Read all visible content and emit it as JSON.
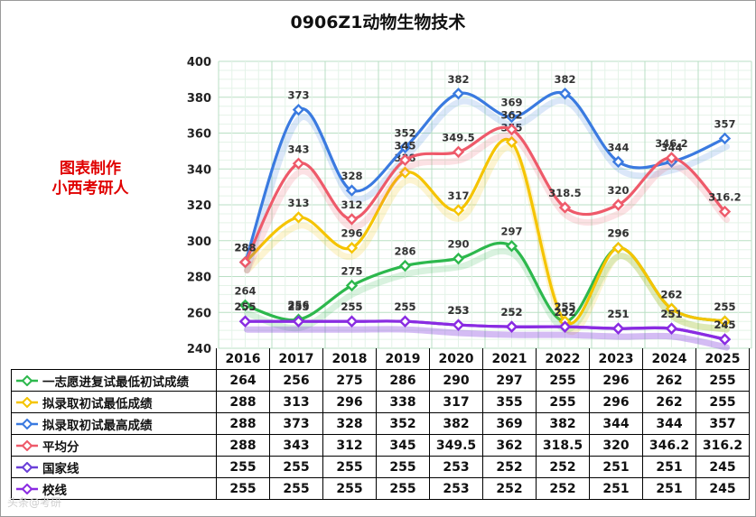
{
  "chart_data": {
    "type": "line",
    "title": "0906Z1动物生物技术",
    "x": [
      "2016",
      "2017",
      "2018",
      "2019",
      "2020",
      "2021",
      "2022",
      "2023",
      "2024",
      "2025"
    ],
    "ylim": [
      240,
      400
    ],
    "yticks": [
      240,
      260,
      280,
      300,
      320,
      340,
      360,
      380,
      400
    ],
    "grid": true,
    "legend": "table-left",
    "series": [
      {
        "name": "一志愿进复试最低初试成绩",
        "color": "#2db84d",
        "values": [
          264,
          256,
          275,
          286,
          290,
          297,
          255,
          296,
          262,
          255
        ],
        "labels": [
          "264",
          "256",
          "275",
          "286",
          "290",
          "297",
          "255",
          "296",
          "262",
          "255"
        ]
      },
      {
        "name": "拟录取初试最低成绩",
        "color": "#f5c400",
        "values": [
          288,
          313,
          296,
          338,
          317,
          355,
          255,
          296,
          262,
          255
        ],
        "labels": [
          "288",
          "313",
          "296",
          "338",
          "317",
          "355",
          "255",
          "296",
          "262",
          "255"
        ]
      },
      {
        "name": "拟录取初试最高成绩",
        "color": "#3a7ae0",
        "values": [
          288,
          373,
          328,
          352,
          382,
          369,
          382,
          344,
          344,
          357
        ],
        "labels": [
          "288",
          "373",
          "328",
          "352",
          "382",
          "369",
          "382",
          "344",
          "344",
          "357"
        ]
      },
      {
        "name": "平均分",
        "color": "#ee5a6a",
        "values": [
          288,
          343,
          312,
          345,
          349.5,
          362,
          318.5,
          320,
          346.2,
          316.2
        ],
        "labels": [
          "288",
          "343",
          "312",
          "345",
          "349.5",
          "362",
          "318.5",
          "320",
          "346.2",
          "316.2"
        ]
      },
      {
        "name": "国家线",
        "color": "#6a3fd8",
        "values": [
          255,
          255,
          255,
          255,
          253,
          252,
          252,
          251,
          251,
          245
        ],
        "labels": [
          "255",
          "255",
          "255",
          "255",
          "253",
          "252",
          "252",
          "251",
          "251",
          "245"
        ]
      },
      {
        "name": "校线",
        "color": "#8a2be2",
        "values": [
          255,
          255,
          255,
          255,
          253,
          252,
          252,
          251,
          251,
          245
        ],
        "labels": [
          "255",
          "255",
          "255",
          "255",
          "253",
          "252",
          "252",
          "251",
          "251",
          "245"
        ]
      }
    ]
  },
  "watermark": {
    "line1": "图表制作",
    "line2": "小西考研人"
  },
  "footer_mark": "头条@考研"
}
